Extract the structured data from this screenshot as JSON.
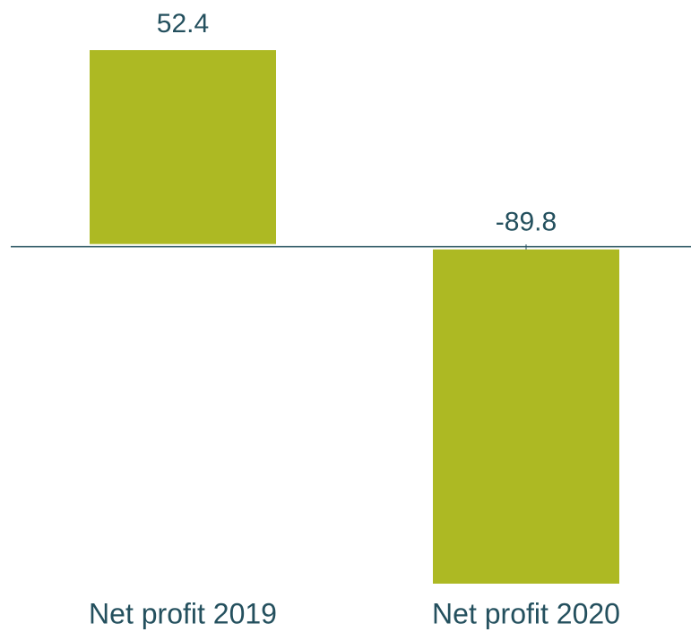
{
  "chart_data": {
    "type": "bar",
    "categories": [
      "Net profit 2019",
      "Net profit 2020"
    ],
    "values": [
      52.4,
      -89.8
    ],
    "color": "#adb923"
  }
}
